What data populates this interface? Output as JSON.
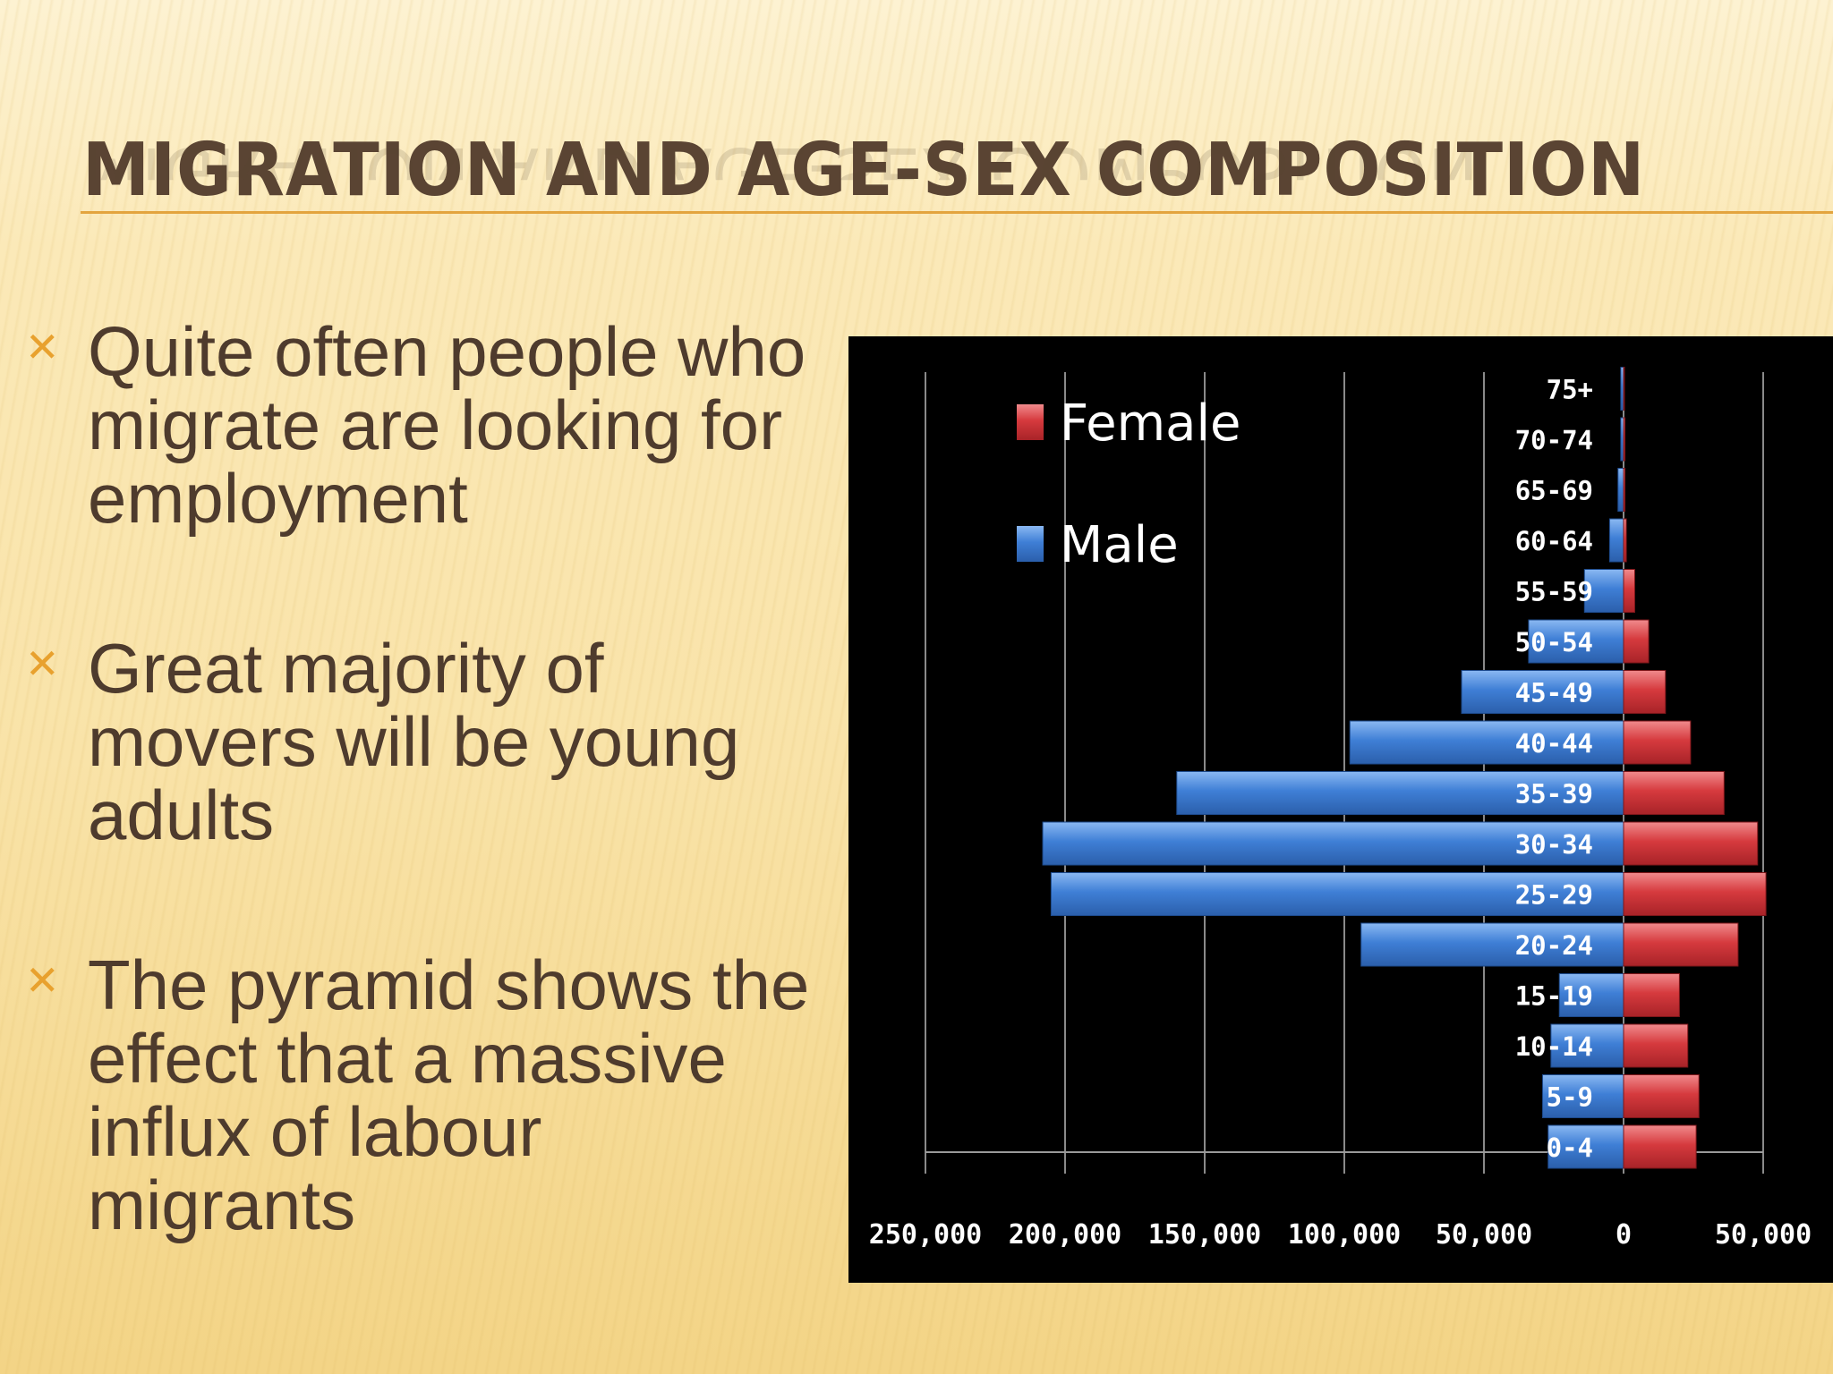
{
  "slide": {
    "title": "MIGRATION AND AGE-SEX COMPOSITION",
    "bullets": [
      "Quite often people who migrate are looking for employment",
      "Great majority of movers will be young adults",
      "The pyramid shows the effect that a massive influx of labour migrants"
    ],
    "bullet_icon": "cross-bullet-icon",
    "colors": {
      "title": "#5a4433",
      "accent": "#e8a12e",
      "text": "#4e3b2d"
    }
  },
  "chart_data": {
    "type": "bar",
    "orientation": "horizontal-pyramid",
    "categories": [
      "0-4",
      "5-9",
      "10-14",
      "15-19",
      "20-24",
      "25-29",
      "30-34",
      "35-39",
      "40-44",
      "45-49",
      "50-54",
      "55-59",
      "60-64",
      "65-69",
      "70-74",
      "75+"
    ],
    "series": [
      {
        "name": "Male",
        "color": "#3f7fd6",
        "values": [
          27000,
          29000,
          26000,
          23000,
          94000,
          205000,
          208000,
          160000,
          98000,
          58000,
          34000,
          14000,
          5000,
          2000,
          1000,
          1000
        ]
      },
      {
        "name": "Female",
        "color": "#d63a3e",
        "values": [
          26000,
          27000,
          23000,
          20000,
          41000,
          51000,
          48000,
          36000,
          24000,
          15000,
          9000,
          4000,
          1000,
          500,
          500,
          300
        ]
      }
    ],
    "x_ticks": [
      "250,000",
      "200,000",
      "150,000",
      "100,000",
      "50,000",
      "0",
      "50,000"
    ],
    "xlim": [
      -250000,
      50000
    ],
    "legend": [
      "Female",
      "Male"
    ],
    "legend_position": "top-left",
    "background": "#000000",
    "grid": true
  }
}
